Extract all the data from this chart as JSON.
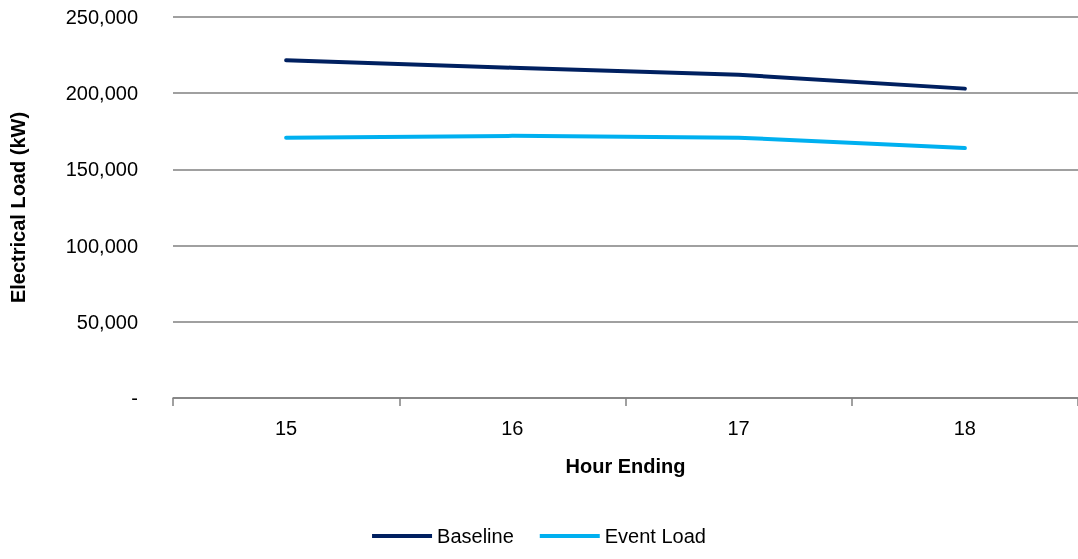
{
  "chart_data": {
    "type": "line",
    "xlabel": "Hour Ending",
    "ylabel": "Electrical Load (kW)",
    "categories": [
      "15",
      "16",
      "17",
      "18"
    ],
    "series": [
      {
        "name": "Baseline",
        "color": "#002060",
        "values": [
          221600,
          216700,
          212100,
          203000
        ]
      },
      {
        "name": "Event Load",
        "color": "#00b0f0",
        "values": [
          170800,
          172000,
          170800,
          164000
        ]
      }
    ],
    "ylim": [
      0,
      250000
    ],
    "yticks": [
      {
        "value": 0,
        "label": "-"
      },
      {
        "value": 50000,
        "label": "50,000"
      },
      {
        "value": 100000,
        "label": "100,000"
      },
      {
        "value": 150000,
        "label": "150,000"
      },
      {
        "value": 200000,
        "label": "200,000"
      },
      {
        "value": 250000,
        "label": "250,000"
      }
    ],
    "grid": "y",
    "legend": "bottom",
    "marker": "none",
    "line_style": "solid"
  }
}
